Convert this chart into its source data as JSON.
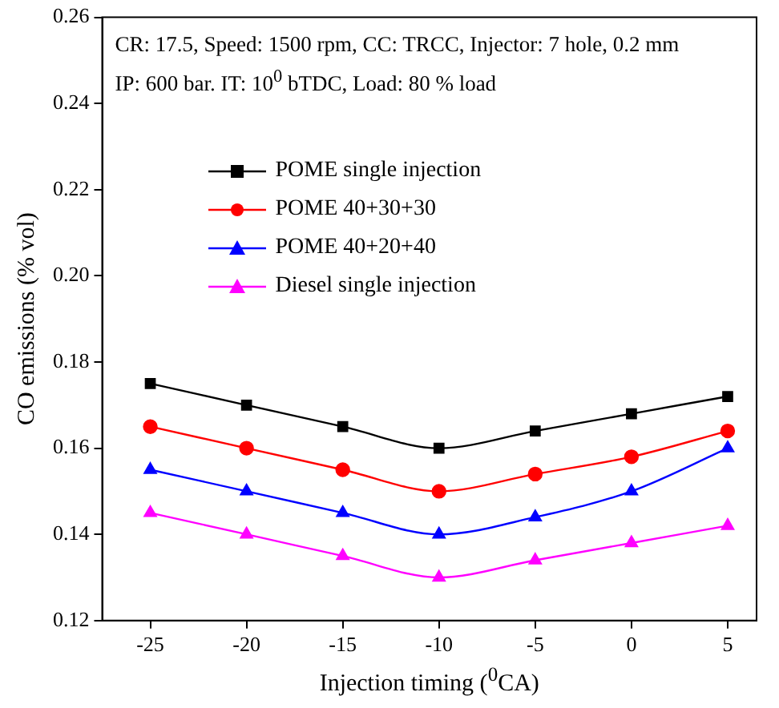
{
  "chart_data": {
    "type": "line",
    "xlabel": "Injection timing ($^{0}$CA)",
    "ylabel": "CO emissions (% vol)",
    "annotations": [
      "CR: 17.5, Speed: 1500 rpm, CC: TRCC, Injector: 7 hole, 0.2 mm",
      "IP: 600 bar. IT: 10$^{0}$ bTDC, Load: 80 % load"
    ],
    "x": [
      -25,
      -20,
      -15,
      -10,
      -5,
      0,
      5
    ],
    "series": [
      {
        "name": "POME single injection",
        "color": "#000000",
        "marker": "square",
        "values": [
          0.175,
          0.17,
          0.165,
          0.16,
          0.164,
          0.168,
          0.172
        ]
      },
      {
        "name": "POME 40+30+30",
        "color": "#ff0000",
        "marker": "circle",
        "values": [
          0.165,
          0.16,
          0.155,
          0.15,
          0.154,
          0.158,
          0.164
        ]
      },
      {
        "name": "POME 40+20+40",
        "color": "#0000ff",
        "marker": "triangle",
        "values": [
          0.155,
          0.15,
          0.145,
          0.14,
          0.144,
          0.15,
          0.16
        ]
      },
      {
        "name": "Diesel single injection",
        "color": "#ff00ff",
        "marker": "triangle",
        "values": [
          0.145,
          0.14,
          0.135,
          0.13,
          0.134,
          0.138,
          0.142
        ]
      }
    ],
    "xlim": [
      -27.5,
      6.5
    ],
    "xticks": [
      -25,
      -20,
      -15,
      -10,
      -5,
      0,
      5
    ],
    "ylim": [
      0.12,
      0.26
    ],
    "yticks": [
      0.12,
      0.14,
      0.16,
      0.18,
      {
        "value": 0.2,
        "label": "0.20"
      },
      0.22,
      0.24,
      0.26
    ],
    "grid": false,
    "legend": "top left",
    "line_style": "solid"
  }
}
